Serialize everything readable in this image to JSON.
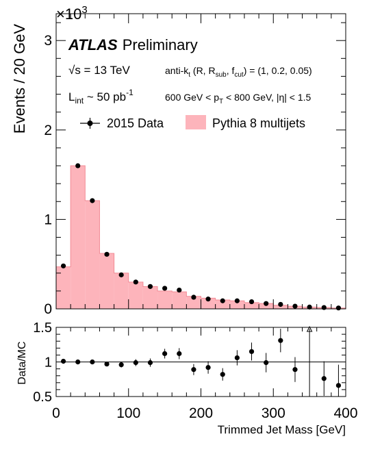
{
  "chart_data": [
    {
      "type": "bar",
      "panel": "main",
      "exponent_label": "×10",
      "exponent_power": "3",
      "ylabel": "Events / 20 GeV",
      "ylim": [
        0,
        3.3
      ],
      "yticks": [
        0,
        1,
        2,
        3
      ],
      "ytick_labels": [
        "0",
        "1",
        "2",
        "3"
      ],
      "xlim": [
        0,
        400
      ],
      "bin_width": 20,
      "title": "ATLAS",
      "title_suffix": "Preliminary",
      "annotations": {
        "sqrt_s": "√s = 13 TeV",
        "lumi": "L",
        "lumi_sub": "int",
        "lumi_val": " ~ 50 pb",
        "lumi_sup": "-1",
        "algo": "anti-k",
        "algo_sub": "t",
        "algo_rest": " (R, R",
        "algo_sub2": "sub",
        "algo_rest2": ", f",
        "algo_sub3": "cut",
        "algo_rest3": ") = (1, 0.2, 0.05)",
        "pt_cut_a": "600 GeV < p",
        "pt_cut_sub": "T",
        "pt_cut_b": " < 800 GeV, |η| < 1.5"
      },
      "legend": {
        "placement": "top",
        "data_label": "2015 Data",
        "mc_label": "Pythia 8 multijets"
      },
      "colors": {
        "mc_fill": "#fdb4bb",
        "mc_edge": "#f28a95",
        "data": "#000000"
      },
      "x": [
        10,
        30,
        50,
        70,
        90,
        110,
        130,
        150,
        170,
        190,
        210,
        230,
        250,
        270,
        290,
        310,
        330,
        350,
        370,
        390
      ],
      "series": [
        {
          "name": "Pythia 8 multijets",
          "kind": "hist",
          "values": [
            0.47,
            1.6,
            1.21,
            0.62,
            0.4,
            0.3,
            0.25,
            0.2,
            0.19,
            0.14,
            0.12,
            0.1,
            0.09,
            0.07,
            0.06,
            0.04,
            0.03,
            0.02,
            0.015,
            0.01
          ]
        },
        {
          "name": "2015 Data",
          "kind": "points",
          "values": [
            0.48,
            1.6,
            1.21,
            0.61,
            0.38,
            0.3,
            0.25,
            0.23,
            0.21,
            0.13,
            0.11,
            0.09,
            0.09,
            0.08,
            0.06,
            0.05,
            0.03,
            0.02,
            0.015,
            0.01
          ]
        }
      ]
    },
    {
      "type": "scatter",
      "panel": "ratio",
      "ylabel": "Data/MC",
      "xlabel": "Trimmed Jet Mass [GeV]",
      "ylim": [
        0.5,
        1.5
      ],
      "yticks": [
        0.5,
        1,
        1.5
      ],
      "ytick_labels": [
        "0.5",
        "1",
        "1.5"
      ],
      "xlim": [
        0,
        400
      ],
      "xticks": [
        0,
        100,
        200,
        300,
        400
      ],
      "xtick_labels": [
        "0",
        "100",
        "200",
        "300",
        "400"
      ],
      "reference_line": 1,
      "x": [
        10,
        30,
        50,
        70,
        90,
        110,
        130,
        150,
        170,
        190,
        210,
        230,
        250,
        270,
        290,
        310,
        330,
        370,
        390
      ],
      "values": [
        1.01,
        1.0,
        1.0,
        0.97,
        0.96,
        0.99,
        0.99,
        1.12,
        1.12,
        0.89,
        0.92,
        0.82,
        1.06,
        1.15,
        0.99,
        1.31,
        0.89,
        0.76,
        0.66
      ],
      "err": [
        0.02,
        0.01,
        0.01,
        0.03,
        0.04,
        0.05,
        0.06,
        0.07,
        0.08,
        0.08,
        0.09,
        0.09,
        0.11,
        0.13,
        0.14,
        0.17,
        0.18,
        0.25,
        0.3
      ],
      "offscale_arrow_x": 350
    }
  ]
}
